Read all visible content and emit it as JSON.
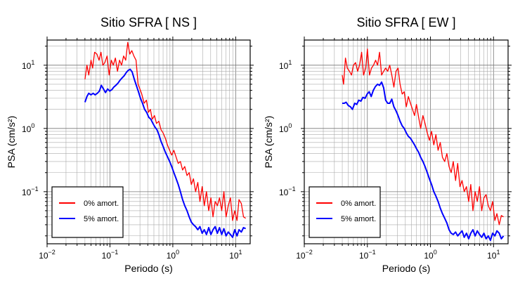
{
  "chart_data": [
    {
      "type": "line",
      "title": "Sitio SFRA [ NS ]",
      "xlabel": "Periodo (s)",
      "ylabel": "PSA (cm/s²)",
      "xscale": "log",
      "yscale": "log",
      "xlim": [
        0.01,
        17
      ],
      "ylim": [
        0.015,
        25
      ],
      "grid": true,
      "legend": "bottom-left",
      "xticks": [
        {
          "v": 0.01,
          "base": "10",
          "exp": "−2"
        },
        {
          "v": 0.1,
          "base": "10",
          "exp": "−1"
        },
        {
          "v": 1,
          "base": "10",
          "exp": "0"
        },
        {
          "v": 10,
          "base": "10",
          "exp": "1"
        }
      ],
      "yticks": [
        {
          "v": 0.1,
          "base": "10",
          "exp": "−1"
        },
        {
          "v": 1,
          "base": "10",
          "exp": "0"
        },
        {
          "v": 10,
          "base": "10",
          "exp": "1"
        }
      ],
      "series": [
        {
          "name": "0% amort.",
          "color": "#ff0000",
          "x": [
            0.04,
            0.043,
            0.046,
            0.05,
            0.053,
            0.057,
            0.062,
            0.067,
            0.072,
            0.077,
            0.083,
            0.09,
            0.097,
            0.105,
            0.113,
            0.122,
            0.132,
            0.142,
            0.153,
            0.165,
            0.178,
            0.192,
            0.207,
            0.223,
            0.24,
            0.26,
            0.28,
            0.3,
            0.32,
            0.35,
            0.38,
            0.41,
            0.44,
            0.47,
            0.51,
            0.55,
            0.6,
            0.65,
            0.7,
            0.76,
            0.82,
            0.89,
            0.96,
            1.04,
            1.13,
            1.22,
            1.32,
            1.43,
            1.55,
            1.68,
            1.82,
            1.97,
            2.13,
            2.3,
            2.5,
            2.7,
            2.93,
            3.17,
            3.43,
            3.72,
            4.03,
            4.36,
            4.72,
            5.11,
            5.53,
            5.99,
            6.49,
            7.03,
            7.61,
            8.24,
            8.93,
            9.67,
            10.5,
            11.3,
            12.3,
            13.3,
            14.4
          ],
          "y": [
            6,
            10,
            7,
            12,
            9,
            16,
            15,
            12,
            16,
            10,
            11,
            14,
            7,
            12,
            10,
            13,
            8,
            12,
            10,
            14,
            12,
            23,
            15,
            17,
            14,
            12,
            5,
            4.2,
            3.5,
            2.5,
            2.8,
            1.8,
            2.0,
            1.4,
            1.6,
            1.2,
            1.3,
            0.95,
            0.85,
            0.7,
            0.55,
            0.45,
            0.38,
            0.45,
            0.35,
            0.28,
            0.3,
            0.22,
            0.25,
            0.18,
            0.2,
            0.13,
            0.16,
            0.1,
            0.14,
            0.07,
            0.12,
            0.06,
            0.1,
            0.05,
            0.08,
            0.04,
            0.07,
            0.06,
            0.08,
            0.05,
            0.1,
            0.04,
            0.06,
            0.08,
            0.035,
            0.05,
            0.035,
            0.075,
            0.065,
            0.04,
            0.038
          ]
        },
        {
          "name": "5% amort.",
          "color": "#0000ff",
          "x": [
            0.04,
            0.043,
            0.046,
            0.05,
            0.054,
            0.058,
            0.063,
            0.068,
            0.073,
            0.079,
            0.085,
            0.092,
            0.099,
            0.107,
            0.115,
            0.124,
            0.134,
            0.145,
            0.156,
            0.168,
            0.181,
            0.195,
            0.21,
            0.226,
            0.244,
            0.263,
            0.284,
            0.306,
            0.33,
            0.356,
            0.384,
            0.414,
            0.447,
            0.482,
            0.52,
            0.56,
            0.6,
            0.65,
            0.7,
            0.76,
            0.82,
            0.89,
            0.96,
            1.04,
            1.13,
            1.22,
            1.32,
            1.43,
            1.55,
            1.68,
            1.82,
            1.97,
            2.13,
            2.3,
            2.5,
            2.7,
            2.93,
            3.17,
            3.43,
            3.72,
            4.03,
            4.36,
            4.72,
            5.11,
            5.53,
            5.99,
            6.49,
            7.03,
            7.61,
            8.24,
            8.93,
            9.67,
            10.5,
            11.3,
            12.3,
            13.3,
            14.4
          ],
          "y": [
            2.6,
            3.2,
            3.6,
            3.4,
            3.6,
            3.4,
            3.6,
            3.9,
            4.8,
            4.2,
            3.7,
            4.2,
            3.9,
            4.1,
            4.5,
            4.8,
            5.2,
            5.8,
            6.3,
            6.8,
            7.6,
            8.3,
            8.6,
            7.8,
            6.0,
            4.8,
            3.8,
            3.0,
            2.5,
            2.0,
            1.8,
            1.5,
            1.4,
            1.2,
            1.05,
            0.95,
            0.8,
            0.62,
            0.52,
            0.42,
            0.36,
            0.3,
            0.25,
            0.2,
            0.16,
            0.13,
            0.1,
            0.075,
            0.06,
            0.05,
            0.04,
            0.033,
            0.03,
            0.028,
            0.025,
            0.028,
            0.022,
            0.025,
            0.021,
            0.027,
            0.021,
            0.025,
            0.028,
            0.022,
            0.027,
            0.021,
            0.026,
            0.02,
            0.023,
            0.021,
            0.019,
            0.025,
            0.02,
            0.025,
            0.023,
            0.027,
            0.026
          ]
        }
      ]
    },
    {
      "type": "line",
      "title": "Sitio SFRA [ EW ]",
      "xlabel": "Periodo (s)",
      "ylabel": "PSA (cm/s²)",
      "xscale": "log",
      "yscale": "log",
      "xlim": [
        0.01,
        17
      ],
      "ylim": [
        0.015,
        25
      ],
      "grid": true,
      "legend": "bottom-left",
      "xticks": [
        {
          "v": 0.01,
          "base": "10",
          "exp": "−2"
        },
        {
          "v": 0.1,
          "base": "10",
          "exp": "−1"
        },
        {
          "v": 1,
          "base": "10",
          "exp": "0"
        },
        {
          "v": 10,
          "base": "10",
          "exp": "1"
        }
      ],
      "yticks": [
        {
          "v": 0.1,
          "base": "10",
          "exp": "−1"
        },
        {
          "v": 1,
          "base": "10",
          "exp": "0"
        },
        {
          "v": 10,
          "base": "10",
          "exp": "1"
        }
      ],
      "series": [
        {
          "name": "0% amort.",
          "color": "#ff0000",
          "x": [
            0.04,
            0.042,
            0.045,
            0.048,
            0.052,
            0.056,
            0.06,
            0.065,
            0.07,
            0.075,
            0.081,
            0.087,
            0.094,
            0.1,
            0.108,
            0.116,
            0.125,
            0.135,
            0.145,
            0.156,
            0.168,
            0.181,
            0.195,
            0.21,
            0.226,
            0.244,
            0.263,
            0.284,
            0.306,
            0.33,
            0.356,
            0.384,
            0.414,
            0.447,
            0.482,
            0.52,
            0.56,
            0.6,
            0.65,
            0.7,
            0.76,
            0.82,
            0.89,
            0.96,
            1.04,
            1.13,
            1.22,
            1.32,
            1.43,
            1.55,
            1.68,
            1.82,
            1.97,
            2.13,
            2.3,
            2.5,
            2.7,
            2.93,
            3.17,
            3.43,
            3.72,
            4.03,
            4.36,
            4.72,
            5.11,
            5.53,
            5.99,
            6.49,
            7.03,
            7.61,
            8.24,
            8.93,
            9.67,
            10.5,
            11.3,
            12.3,
            13.3,
            14.4
          ],
          "y": [
            7,
            5,
            13,
            9,
            8,
            7,
            10,
            11,
            8,
            10,
            16,
            7,
            9,
            18,
            7,
            9,
            10,
            12,
            10,
            16,
            7,
            8,
            9,
            8,
            10,
            7,
            4.5,
            8,
            9,
            5,
            3.5,
            3.8,
            2.2,
            3.2,
            2.5,
            2.0,
            1.6,
            2.4,
            1.5,
            1.0,
            1.6,
            1.2,
            0.85,
            0.65,
            0.9,
            0.55,
            0.8,
            0.45,
            0.6,
            0.35,
            0.3,
            0.4,
            0.25,
            0.2,
            0.3,
            0.15,
            0.28,
            0.12,
            0.15,
            0.1,
            0.12,
            0.07,
            0.13,
            0.05,
            0.1,
            0.07,
            0.12,
            0.05,
            0.08,
            0.09,
            0.06,
            0.05,
            0.07,
            0.035,
            0.045,
            0.03,
            0.042,
            0.04
          ]
        },
        {
          "name": "5% amort.",
          "color": "#0000ff",
          "x": [
            0.04,
            0.043,
            0.046,
            0.05,
            0.054,
            0.058,
            0.063,
            0.068,
            0.073,
            0.079,
            0.085,
            0.092,
            0.099,
            0.107,
            0.115,
            0.124,
            0.134,
            0.145,
            0.156,
            0.168,
            0.181,
            0.195,
            0.21,
            0.226,
            0.244,
            0.263,
            0.284,
            0.306,
            0.33,
            0.356,
            0.384,
            0.414,
            0.447,
            0.482,
            0.52,
            0.56,
            0.6,
            0.65,
            0.7,
            0.76,
            0.82,
            0.89,
            0.96,
            1.04,
            1.13,
            1.22,
            1.32,
            1.43,
            1.55,
            1.68,
            1.82,
            1.97,
            2.13,
            2.3,
            2.5,
            2.7,
            2.93,
            3.17,
            3.43,
            3.72,
            4.03,
            4.36,
            4.72,
            5.11,
            5.53,
            5.99,
            6.49,
            7.03,
            7.61,
            8.24,
            8.93,
            9.67,
            10.5,
            11.3,
            12.3,
            13.3,
            14.4
          ],
          "y": [
            2.5,
            2.5,
            2.6,
            2.3,
            2.2,
            2.0,
            2.5,
            2.4,
            2.8,
            2.7,
            3.1,
            3.0,
            3.5,
            3.8,
            3.2,
            4.0,
            4.6,
            5.0,
            4.8,
            5.4,
            4.4,
            2.8,
            2.5,
            2.5,
            2.9,
            2.2,
            1.9,
            1.6,
            1.3,
            1.1,
            1.0,
            0.85,
            0.75,
            0.7,
            0.62,
            0.55,
            0.48,
            0.42,
            0.35,
            0.3,
            0.25,
            0.2,
            0.16,
            0.13,
            0.1,
            0.085,
            0.07,
            0.055,
            0.045,
            0.038,
            0.032,
            0.025,
            0.022,
            0.021,
            0.023,
            0.02,
            0.022,
            0.024,
            0.019,
            0.022,
            0.018,
            0.022,
            0.025,
            0.02,
            0.024,
            0.021,
            0.019,
            0.022,
            0.018,
            0.02,
            0.017,
            0.022,
            0.02,
            0.024,
            0.022,
            0.018,
            0.02
          ]
        }
      ]
    }
  ]
}
